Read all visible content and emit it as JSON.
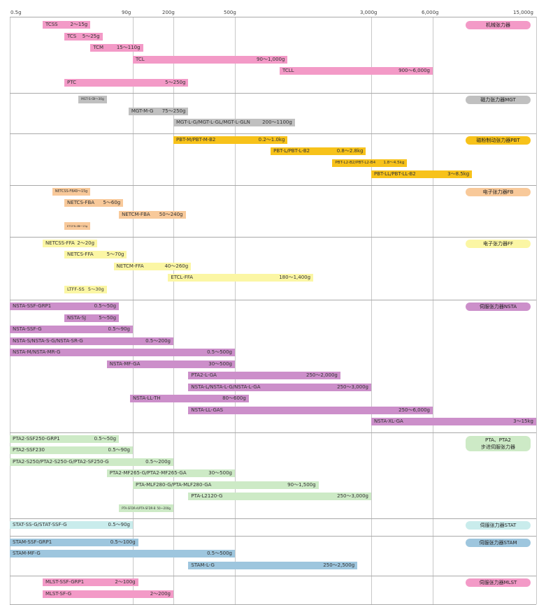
{
  "chart_data": {
    "type": "bar",
    "orientation": "horizontal",
    "x_scale": "log",
    "xlim_g": [
      0.5,
      15000
    ],
    "xticks": [
      {
        "value": 0.5,
        "label": "0.5g"
      },
      {
        "value": 90,
        "label": "90g"
      },
      {
        "value": 200,
        "label": "200g"
      },
      {
        "value": 500,
        "label": "500g"
      },
      {
        "value": 3000,
        "label": "3,000g"
      },
      {
        "value": 6000,
        "label": "6,000g"
      },
      {
        "value": 15000,
        "label": "15,000g"
      }
    ],
    "grid": "vertical lines at ticks",
    "groups": [
      {
        "label": "机械张力器",
        "color": "#f39ac7",
        "bars": [
          {
            "name": "TCSS",
            "range": "2～15g",
            "min": 2,
            "max": 15
          },
          {
            "name": "TCS",
            "range": "5～25g",
            "min": 5,
            "max": 25
          },
          {
            "name": "TCM",
            "range": "15～110g",
            "min": 15,
            "max": 110
          },
          {
            "name": "TCL",
            "range": "90～1,000g",
            "min": 90,
            "max": 1000
          },
          {
            "name": "TCLL",
            "range": "900～6,000g",
            "min": 900,
            "max": 6000
          },
          {
            "name": "PTC",
            "range": "5～250g",
            "min": 5,
            "max": 250
          }
        ]
      },
      {
        "label": "磁力张力器MGT",
        "color": "#c0c0c0",
        "bars": [
          {
            "name": "MGT-S-G",
            "range": "9～30g",
            "min": 9,
            "max": 30
          },
          {
            "name": "MGT-M-G",
            "range": "75～250g",
            "min": 75,
            "max": 250
          },
          {
            "name": "MGT-L-G/MGT-L-GL/MGT-L-GLN",
            "range": "200～1100g",
            "min": 200,
            "max": 1100
          }
        ]
      },
      {
        "label": "磁粉制动张力器PBT",
        "color": "#f7c21a",
        "bars": [
          {
            "name": "PBT-M/PBT-M-B2",
            "range": "0.2～1.0kg",
            "min": 200,
            "max": 1000
          },
          {
            "name": "PBT-L/PBT-L-B2",
            "range": "0.8～2.8kg",
            "min": 800,
            "max": 2800
          },
          {
            "name": "PBT-L2-B2/PBT-L2-B4",
            "range": "1.8～4.5kg",
            "min": 1800,
            "max": 4500
          },
          {
            "name": "PBT-LL/PBT-LL-B2",
            "range": "3～8.5kg",
            "min": 3000,
            "max": 8500
          }
        ]
      },
      {
        "label": "电子张力器FB",
        "color": "#f8c99a",
        "bars": [
          {
            "name": "NETCSS-FBA",
            "range": "3～15g",
            "min": 3,
            "max": 15
          },
          {
            "name": "NETCS-FBA",
            "range": "5～60g",
            "min": 5,
            "max": 60
          },
          {
            "name": "NETCM-FBA",
            "range": "50～240g",
            "min": 50,
            "max": 240
          },
          {
            "name": "ETCFB-SS",
            "range": "5～15g",
            "min": 5,
            "max": 15
          }
        ]
      },
      {
        "label": "电子张力器FF",
        "color": "#fbf6a4",
        "bars": [
          {
            "name": "NETCSS-FFA",
            "range": "2～20g",
            "min": 2,
            "max": 20
          },
          {
            "name": "NETCS-FFA",
            "range": "5～70g",
            "min": 5,
            "max": 70
          },
          {
            "name": "NETCM-FFA",
            "range": "40～260g",
            "min": 40,
            "max": 260
          },
          {
            "name": "ETCL-FFA",
            "range": "180～1,400g",
            "min": 180,
            "max": 1400
          },
          {
            "name": "LTFF-SS",
            "range": "5～30g",
            "min": 5,
            "max": 30
          }
        ]
      },
      {
        "label": "伺服张力器NSTA",
        "color": "#cc8fca",
        "bars": [
          {
            "name": "NSTA-SSF-GRP1",
            "range": "0.5～50g",
            "min": 0.5,
            "max": 50
          },
          {
            "name": "NSTA-SJ",
            "range": "5～50g",
            "min": 5,
            "max": 50
          },
          {
            "name": "NSTA-SSF-G",
            "range": "0.5～90g",
            "min": 0.5,
            "max": 90
          },
          {
            "name": "NSTA-S/NSTA-S-G/NSTA-SR-G",
            "range": "0.5～200g",
            "min": 0.5,
            "max": 200
          },
          {
            "name": "NSTA-M/NSTA-MR-G",
            "range": "0.5～500g",
            "min": 0.5,
            "max": 500
          },
          {
            "name": "NSTA-MF-GA",
            "range": "30～500g",
            "min": 30,
            "max": 500
          },
          {
            "name": "PTA2-L-GA",
            "range": "250～2,000g",
            "min": 250,
            "max": 2000
          },
          {
            "name": "NSTA-L/NSTA-L-G/NSTA-L-GA",
            "range": "250～3,000g",
            "min": 250,
            "max": 3000
          },
          {
            "name": "NSTA-LL-TH",
            "range": "80～600g",
            "min": 80,
            "max": 600
          },
          {
            "name": "NSTA-LL-GAS",
            "range": "250～6,000g",
            "min": 250,
            "max": 6000
          },
          {
            "name": "NSTA-XL-GA",
            "range": "3～15kg",
            "min": 3000,
            "max": 15000
          }
        ]
      },
      {
        "label": "PTA、PTA2",
        "label2": "步进伺服张力器",
        "color": "#cdeac6",
        "bars": [
          {
            "name": "PTA2-SSF250-GRP1",
            "range": "0.5～50g",
            "min": 0.5,
            "max": 50
          },
          {
            "name": "PTA2-SSF230",
            "range": "0.5～90g",
            "min": 0.5,
            "max": 90
          },
          {
            "name": "PTA2-S250/PTA2-S250-G/PTA2-SF250-G",
            "range": "0.5～200g",
            "min": 0.5,
            "max": 200
          },
          {
            "name": "PTA2-MF265-G/PTA2-MF265-GA",
            "range": "30～500g",
            "min": 30,
            "max": 500
          },
          {
            "name": "PTA-MLF280-G/PTA-MLF280-GA",
            "range": "90～1,500g",
            "min": 90,
            "max": 1500
          },
          {
            "name": "PTA-L2120-G",
            "range": "250～3,000g",
            "min": 250,
            "max": 3000
          },
          {
            "name": "PTA-SFDR-A/PTA-SFDR-B",
            "range": "50～200g",
            "min": 50,
            "max": 200
          }
        ]
      },
      {
        "label": "伺服张力器STAT",
        "color": "#c9ecec",
        "bars": [
          {
            "name": "STAT-SS-G/STAT-SSF-G",
            "range": "0.5～90g",
            "min": 0.5,
            "max": 90
          }
        ]
      },
      {
        "label": "伺服张力器STAM",
        "color": "#9ec6de",
        "bars": [
          {
            "name": "STAM-SSF-GRP1",
            "range": "0.5～100g",
            "min": 0.5,
            "max": 100
          },
          {
            "name": "STAM-MF-G",
            "range": "0.5～500g",
            "min": 0.5,
            "max": 500
          },
          {
            "name": "STAM-L-G",
            "range": "250～2,500g",
            "min": 250,
            "max": 2500
          }
        ]
      },
      {
        "label": "伺服张力器MLST",
        "color": "#f39ac7",
        "bars": [
          {
            "name": "MLST-SSF-GRP1",
            "range": "2～100g",
            "min": 2,
            "max": 100
          },
          {
            "name": "MLST-SF-G",
            "range": "2～200g",
            "min": 2,
            "max": 200
          }
        ]
      }
    ]
  }
}
